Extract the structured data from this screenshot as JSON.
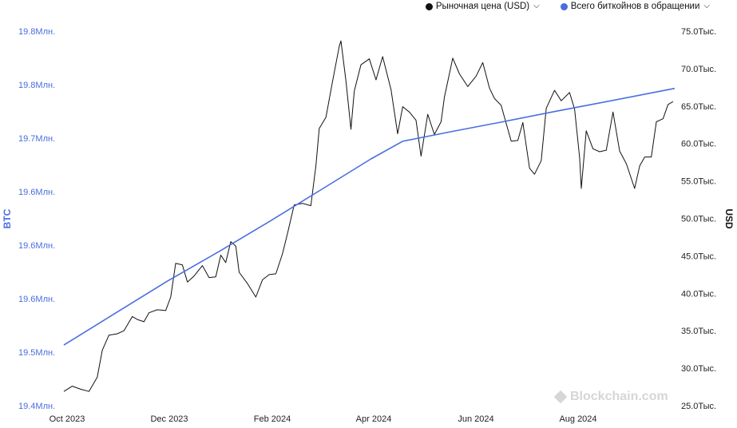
{
  "legend": {
    "price_label": "Рыночная цена (USD)",
    "supply_label": "Всего биткойнов в обращении",
    "price_color": "#111111",
    "supply_color": "#4a6ee0",
    "chevron_icon": "chevron-down-icon"
  },
  "watermark": {
    "text": "Blockchain.com",
    "icon": "blockchain-logo-icon"
  },
  "chart_data": {
    "type": "line",
    "ylabel_left": "BTC",
    "ylabel_right": "USD",
    "x_ticks": [
      "Oct 2023",
      "Dec 2023",
      "Feb 2024",
      "Apr 2024",
      "Jun 2024",
      "Aug 2024"
    ],
    "y_left_ticks": [
      "19.8Млн.",
      "19.8Млн.",
      "19.7Млн.",
      "19.6Млн.",
      "19.6Млн.",
      "19.6Млн.",
      "19.5Млн.",
      "19.4Млн."
    ],
    "y_right_ticks": [
      "75.0Тыс.",
      "70.0Тыс.",
      "65.0Тыс.",
      "60.0Тыс.",
      "55.0Тыс.",
      "50.0Тыс.",
      "45.0Тыс.",
      "40.0Тыс.",
      "35.0Тыс.",
      "30.0Тыс.",
      "25.0Тыс."
    ],
    "x_range": [
      "2023-09-30",
      "2024-09-30"
    ],
    "y_left_range": [
      19.45,
      19.79
    ],
    "y_right_range": [
      25000,
      75000
    ],
    "series": [
      {
        "name": "Рыночная цена (USD)",
        "axis": "right",
        "color": "#111111",
        "points": [
          [
            "2023-09-30",
            26900
          ],
          [
            "2023-10-05",
            27600
          ],
          [
            "2023-10-10",
            27200
          ],
          [
            "2023-10-15",
            26900
          ],
          [
            "2023-10-20",
            28800
          ],
          [
            "2023-10-23",
            32400
          ],
          [
            "2023-10-27",
            34400
          ],
          [
            "2023-11-01",
            34600
          ],
          [
            "2023-11-05",
            35000
          ],
          [
            "2023-11-10",
            36900
          ],
          [
            "2023-11-13",
            36500
          ],
          [
            "2023-11-17",
            36200
          ],
          [
            "2023-11-20",
            37400
          ],
          [
            "2023-11-25",
            37800
          ],
          [
            "2023-11-30",
            37700
          ],
          [
            "2023-12-03",
            39500
          ],
          [
            "2023-12-06",
            44000
          ],
          [
            "2023-12-10",
            43800
          ],
          [
            "2023-12-13",
            41500
          ],
          [
            "2023-12-17",
            42300
          ],
          [
            "2023-12-22",
            43700
          ],
          [
            "2023-12-26",
            42100
          ],
          [
            "2023-12-30",
            42200
          ],
          [
            "2024-01-02",
            45100
          ],
          [
            "2024-01-05",
            44100
          ],
          [
            "2024-01-08",
            46900
          ],
          [
            "2024-01-11",
            46300
          ],
          [
            "2024-01-13",
            42800
          ],
          [
            "2024-01-18",
            41300
          ],
          [
            "2024-01-23",
            39500
          ],
          [
            "2024-01-27",
            41800
          ],
          [
            "2024-01-31",
            42500
          ],
          [
            "2024-02-04",
            42600
          ],
          [
            "2024-02-08",
            45300
          ],
          [
            "2024-02-11",
            48000
          ],
          [
            "2024-02-15",
            51800
          ],
          [
            "2024-02-20",
            52000
          ],
          [
            "2024-02-25",
            51700
          ],
          [
            "2024-02-28",
            57000
          ],
          [
            "2024-03-01",
            62000
          ],
          [
            "2024-03-05",
            63500
          ],
          [
            "2024-03-09",
            68300
          ],
          [
            "2024-03-13",
            73000
          ],
          [
            "2024-03-14",
            73700
          ],
          [
            "2024-03-17",
            68400
          ],
          [
            "2024-03-20",
            61900
          ],
          [
            "2024-03-22",
            67000
          ],
          [
            "2024-03-26",
            70500
          ],
          [
            "2024-03-31",
            71300
          ],
          [
            "2024-04-04",
            68500
          ],
          [
            "2024-04-08",
            71600
          ],
          [
            "2024-04-13",
            67200
          ],
          [
            "2024-04-17",
            61300
          ],
          [
            "2024-04-20",
            64900
          ],
          [
            "2024-04-24",
            64200
          ],
          [
            "2024-04-28",
            63100
          ],
          [
            "2024-05-01",
            58300
          ],
          [
            "2024-05-05",
            63900
          ],
          [
            "2024-05-09",
            61200
          ],
          [
            "2024-05-13",
            62900
          ],
          [
            "2024-05-15",
            66200
          ],
          [
            "2024-05-20",
            71400
          ],
          [
            "2024-05-24",
            69300
          ],
          [
            "2024-05-29",
            67600
          ],
          [
            "2024-06-03",
            69000
          ],
          [
            "2024-06-07",
            70800
          ],
          [
            "2024-06-11",
            67400
          ],
          [
            "2024-06-14",
            66000
          ],
          [
            "2024-06-18",
            65100
          ],
          [
            "2024-06-24",
            60300
          ],
          [
            "2024-06-28",
            60400
          ],
          [
            "2024-07-01",
            62800
          ],
          [
            "2024-07-05",
            56700
          ],
          [
            "2024-07-08",
            55900
          ],
          [
            "2024-07-12",
            57700
          ],
          [
            "2024-07-15",
            64700
          ],
          [
            "2024-07-20",
            67100
          ],
          [
            "2024-07-24",
            65700
          ],
          [
            "2024-07-29",
            66800
          ],
          [
            "2024-08-01",
            64600
          ],
          [
            "2024-08-04",
            58100
          ],
          [
            "2024-08-05",
            54000
          ],
          [
            "2024-08-08",
            61700
          ],
          [
            "2024-08-12",
            59300
          ],
          [
            "2024-08-16",
            58900
          ],
          [
            "2024-08-20",
            59100
          ],
          [
            "2024-08-24",
            64200
          ],
          [
            "2024-08-28",
            59000
          ],
          [
            "2024-09-01",
            57300
          ],
          [
            "2024-09-06",
            54000
          ],
          [
            "2024-09-09",
            57000
          ],
          [
            "2024-09-12",
            58200
          ],
          [
            "2024-09-16",
            58200
          ],
          [
            "2024-09-19",
            62900
          ],
          [
            "2024-09-23",
            63300
          ],
          [
            "2024-09-26",
            65200
          ],
          [
            "2024-09-29",
            65600
          ]
        ]
      },
      {
        "name": "Всего биткойнов в обращении",
        "axis": "left",
        "color": "#4a6ee0",
        "points": [
          [
            "2023-09-30",
            19.505
          ],
          [
            "2023-11-01",
            19.535
          ],
          [
            "2023-12-01",
            19.563
          ],
          [
            "2024-01-01",
            19.59
          ],
          [
            "2024-02-01",
            19.618
          ],
          [
            "2024-03-01",
            19.645
          ],
          [
            "2024-04-01",
            19.674
          ],
          [
            "2024-04-20",
            19.69
          ],
          [
            "2024-05-20",
            19.699
          ],
          [
            "2024-06-20",
            19.708
          ],
          [
            "2024-07-20",
            19.717
          ],
          [
            "2024-08-20",
            19.726
          ],
          [
            "2024-09-30",
            19.738
          ]
        ]
      }
    ]
  }
}
